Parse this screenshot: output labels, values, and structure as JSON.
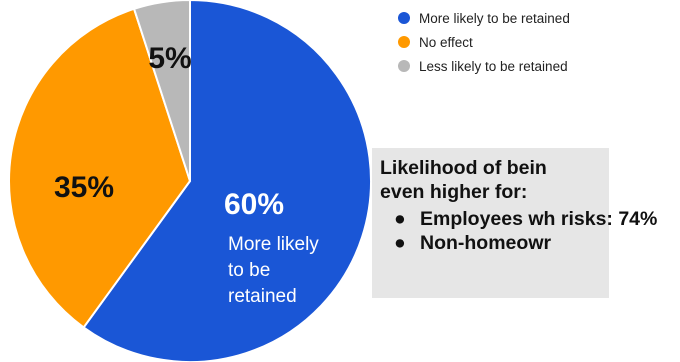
{
  "chart_data": {
    "type": "pie",
    "title": "",
    "slices": [
      {
        "name": "More likely to be retained",
        "value": 60,
        "label": "60%",
        "sublabel": [
          "More likely",
          "to be",
          "retained"
        ],
        "color": "#1a56d6"
      },
      {
        "name": "No effect",
        "value": 35,
        "label": "35%",
        "color": "#ff9900"
      },
      {
        "name": "Less likely to be retained",
        "value": 5,
        "label": "5%",
        "color": "#b8b8b8"
      }
    ],
    "start": "12 o'clock",
    "direction": "clockwise",
    "legend_position": "top-right"
  },
  "legend": {
    "items": [
      {
        "label": "More likely to be retained",
        "color": "#1a56d6"
      },
      {
        "label": "No effect",
        "color": "#ff9900"
      },
      {
        "label": "Less likely to be retained",
        "color": "#b8b8b8"
      }
    ]
  },
  "callout": {
    "heading": "Likelihood of bein",
    "heading2": "even higher for:",
    "items": [
      {
        "bullet": "●",
        "text": "Employees wh risks: 74%"
      },
      {
        "bullet": "●",
        "text": "Non-homeowr"
      }
    ]
  }
}
